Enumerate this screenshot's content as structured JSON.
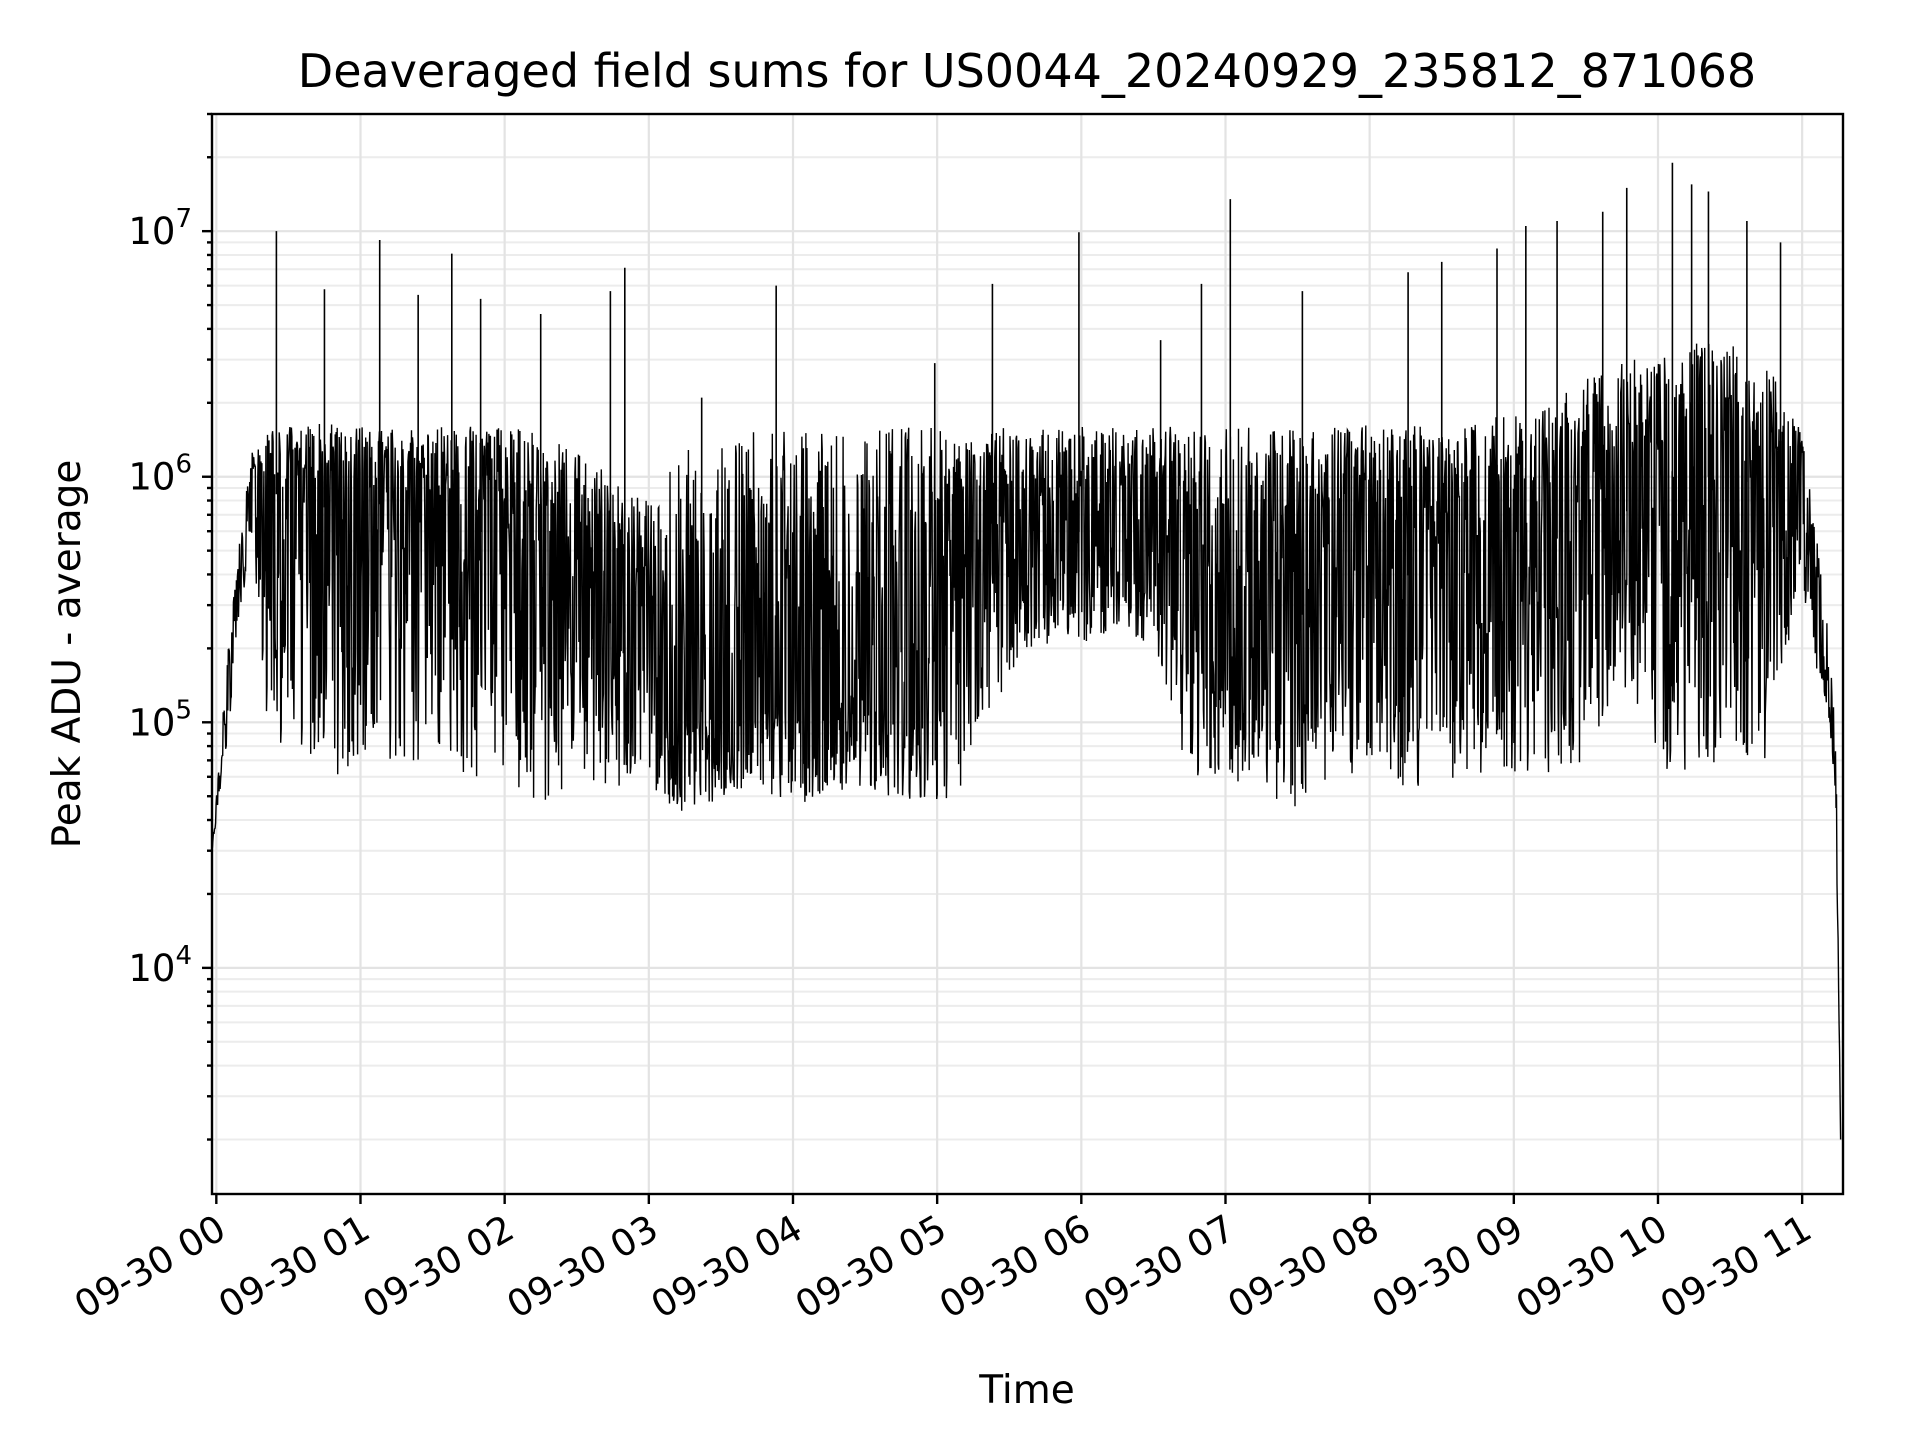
{
  "chart_data": {
    "type": "line",
    "title": "Deaveraged field sums for US0044_20240929_235812_871068",
    "xlabel": "Time",
    "ylabel": "Peak ADU - average",
    "yscale": "log",
    "ylim": [
      1200,
      30000000
    ],
    "xlim": [
      "2024-09-29 23:58:12",
      "2024-09-30 11:17:00"
    ],
    "grid": true,
    "x_ticks": [
      {
        "value": "2024-09-30 00:00",
        "label": "09-30 00"
      },
      {
        "value": "2024-09-30 01:00",
        "label": "09-30 01"
      },
      {
        "value": "2024-09-30 02:00",
        "label": "09-30 02"
      },
      {
        "value": "2024-09-30 03:00",
        "label": "09-30 03"
      },
      {
        "value": "2024-09-30 04:00",
        "label": "09-30 04"
      },
      {
        "value": "2024-09-30 05:00",
        "label": "09-30 05"
      },
      {
        "value": "2024-09-30 06:00",
        "label": "09-30 06"
      },
      {
        "value": "2024-09-30 07:00",
        "label": "09-30 07"
      },
      {
        "value": "2024-09-30 08:00",
        "label": "09-30 08"
      },
      {
        "value": "2024-09-30 09:00",
        "label": "09-30 09"
      },
      {
        "value": "2024-09-30 10:00",
        "label": "09-30 10"
      },
      {
        "value": "2024-09-30 11:00",
        "label": "09-30 11"
      }
    ],
    "y_ticks": [
      {
        "value": 10000,
        "base": "10",
        "exp": "4"
      },
      {
        "value": 100000,
        "base": "10",
        "exp": "5"
      },
      {
        "value": 1000000,
        "base": "10",
        "exp": "6"
      },
      {
        "value": 10000000,
        "base": "10",
        "exp": "7"
      }
    ],
    "series": [
      {
        "color": "#000000",
        "x": [
          "2024-09-29 23:58:12",
          "2024-09-30 00:05",
          "2024-09-30 00:10",
          "2024-09-30 00:15",
          "2024-09-30 00:20",
          "2024-09-30 00:30",
          "2024-09-30 00:45",
          "2024-09-30 01:00",
          "2024-09-30 01:15",
          "2024-09-30 01:30",
          "2024-09-30 01:45",
          "2024-09-30 02:00",
          "2024-09-30 02:15",
          "2024-09-30 02:30",
          "2024-09-30 02:45",
          "2024-09-30 03:00",
          "2024-09-30 03:15",
          "2024-09-30 03:30",
          "2024-09-30 03:45",
          "2024-09-30 04:00",
          "2024-09-30 04:15",
          "2024-09-30 04:30",
          "2024-09-30 04:45",
          "2024-09-30 05:00",
          "2024-09-30 05:15",
          "2024-09-30 05:30",
          "2024-09-30 05:45",
          "2024-09-30 06:00",
          "2024-09-30 06:15",
          "2024-09-30 06:30",
          "2024-09-30 06:45",
          "2024-09-30 07:00",
          "2024-09-30 07:15",
          "2024-09-30 07:30",
          "2024-09-30 07:45",
          "2024-09-30 08:00",
          "2024-09-30 08:15",
          "2024-09-30 08:30",
          "2024-09-30 08:45",
          "2024-09-30 09:00",
          "2024-09-30 09:15",
          "2024-09-30 09:30",
          "2024-09-30 09:45",
          "2024-09-30 10:00",
          "2024-09-30 10:15",
          "2024-09-30 10:30",
          "2024-09-30 10:45",
          "2024-09-30 11:00",
          "2024-09-30 11:05",
          "2024-09-30 11:10",
          "2024-09-30 11:14",
          "2024-09-30 11:16"
        ],
        "median": [
          30000,
          150000,
          400000,
          800000,
          900000,
          800000,
          750000,
          800000,
          750000,
          700000,
          650000,
          500000,
          400000,
          300000,
          250000,
          200000,
          120000,
          100000,
          110000,
          120000,
          120000,
          150000,
          200000,
          250000,
          450000,
          500000,
          550000,
          600000,
          550000,
          500000,
          350000,
          250000,
          200000,
          250000,
          500000,
          500000,
          400000,
          350000,
          380000,
          450000,
          550000,
          600000,
          700000,
          900000,
          1000000,
          1000000,
          900000,
          800000,
          400000,
          200000,
          60000,
          2000
        ],
        "low_envelope": [
          30000,
          90000,
          300000,
          500000,
          100000,
          70000,
          60000,
          60000,
          70000,
          70000,
          60000,
          60000,
          40000,
          55000,
          55000,
          55000,
          40000,
          50000,
          55000,
          45000,
          50000,
          50000,
          50000,
          45000,
          60000,
          150000,
          200000,
          200000,
          250000,
          200000,
          60000,
          60000,
          50000,
          45000,
          60000,
          60000,
          55000,
          55000,
          60000,
          60000,
          60000,
          70000,
          150000,
          60000,
          60000,
          70000,
          70000,
          400000,
          150000,
          120000,
          50000,
          2000
        ],
        "high_envelope": [
          30000,
          200000,
          600000,
          1300000,
          1500000,
          1600000,
          1650000,
          1600000,
          1600000,
          1600000,
          1600000,
          1600000,
          1500000,
          1300000,
          1000000,
          800000,
          1300000,
          1550000,
          1600000,
          1600000,
          1550000,
          1550000,
          1600000,
          1600000,
          1600000,
          1600000,
          1600000,
          1600000,
          1600000,
          1600000,
          1600000,
          1600000,
          1600000,
          1600000,
          1600000,
          1650000,
          1650000,
          1650000,
          1700000,
          1800000,
          2000000,
          2500000,
          3000000,
          3000000,
          3500000,
          3500000,
          3000000,
          1500000,
          700000,
          300000,
          100000,
          2000
        ],
        "spikes": [
          {
            "x": "2024-09-30 00:25",
            "y": 10000000
          },
          {
            "x": "2024-09-30 00:45",
            "y": 5800000
          },
          {
            "x": "2024-09-30 01:08",
            "y": 9200000
          },
          {
            "x": "2024-09-30 01:24",
            "y": 5500000
          },
          {
            "x": "2024-09-30 01:38",
            "y": 8100000
          },
          {
            "x": "2024-09-30 01:50",
            "y": 5300000
          },
          {
            "x": "2024-09-30 02:15",
            "y": 4600000
          },
          {
            "x": "2024-09-30 02:44",
            "y": 5700000
          },
          {
            "x": "2024-09-30 02:50",
            "y": 7100000
          },
          {
            "x": "2024-09-30 03:22",
            "y": 2100000
          },
          {
            "x": "2024-09-30 03:53",
            "y": 6000000
          },
          {
            "x": "2024-09-30 04:59",
            "y": 2900000
          },
          {
            "x": "2024-09-30 05:23",
            "y": 6100000
          },
          {
            "x": "2024-09-30 05:59",
            "y": 9900000
          },
          {
            "x": "2024-09-30 06:33",
            "y": 3600000
          },
          {
            "x": "2024-09-30 06:50",
            "y": 6100000
          },
          {
            "x": "2024-09-30 07:02",
            "y": 13500000
          },
          {
            "x": "2024-09-30 07:32",
            "y": 5700000
          },
          {
            "x": "2024-09-30 08:16",
            "y": 6800000
          },
          {
            "x": "2024-09-30 08:30",
            "y": 7500000
          },
          {
            "x": "2024-09-30 08:53",
            "y": 8500000
          },
          {
            "x": "2024-09-30 09:05",
            "y": 10500000
          },
          {
            "x": "2024-09-30 09:18",
            "y": 11000000
          },
          {
            "x": "2024-09-30 09:37",
            "y": 12000000
          },
          {
            "x": "2024-09-30 09:47",
            "y": 15000000
          },
          {
            "x": "2024-09-30 10:06",
            "y": 19000000
          },
          {
            "x": "2024-09-30 10:14",
            "y": 15500000
          },
          {
            "x": "2024-09-30 10:21",
            "y": 14500000
          },
          {
            "x": "2024-09-30 10:37",
            "y": 11000000
          },
          {
            "x": "2024-09-30 10:51",
            "y": 9000000
          }
        ]
      }
    ]
  }
}
